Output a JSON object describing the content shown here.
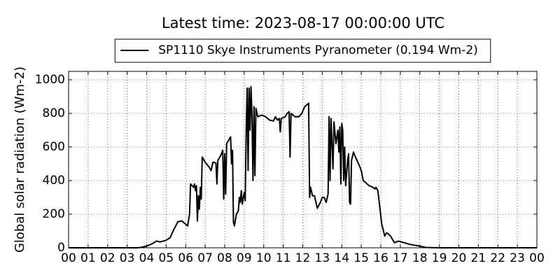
{
  "chart_data": {
    "type": "line",
    "title": "Latest time: 2023-08-17 00:00:00 UTC",
    "ylabel": "Global solar radiation (Wm-2)",
    "legend_position": "upper center",
    "grid": true,
    "xlim": [
      0,
      24
    ],
    "ylim": [
      0,
      1050
    ],
    "yticks": [
      0,
      200,
      400,
      600,
      800,
      1000
    ],
    "xticks": [
      {
        "value": 0,
        "label": "00"
      },
      {
        "value": 1,
        "label": "01"
      },
      {
        "value": 2,
        "label": "02"
      },
      {
        "value": 3,
        "label": "03"
      },
      {
        "value": 4,
        "label": "04"
      },
      {
        "value": 5,
        "label": "05"
      },
      {
        "value": 6,
        "label": "06"
      },
      {
        "value": 7,
        "label": "07"
      },
      {
        "value": 8,
        "label": "08"
      },
      {
        "value": 9,
        "label": "09"
      },
      {
        "value": 10,
        "label": "10"
      },
      {
        "value": 11,
        "label": "11"
      },
      {
        "value": 12,
        "label": "12"
      },
      {
        "value": 13,
        "label": "13"
      },
      {
        "value": 14,
        "label": "14"
      },
      {
        "value": 15,
        "label": "15"
      },
      {
        "value": 16,
        "label": "16"
      },
      {
        "value": 17,
        "label": "17"
      },
      {
        "value": 18,
        "label": "18"
      },
      {
        "value": 19,
        "label": "19"
      },
      {
        "value": 20,
        "label": "20"
      },
      {
        "value": 21,
        "label": "21"
      },
      {
        "value": 22,
        "label": "22"
      },
      {
        "value": 23,
        "label": "23"
      },
      {
        "value": 24,
        "label": "00"
      }
    ],
    "series": [
      {
        "name": "SP1110 Skye Instruments Pyranometer (0.194 Wm-2)",
        "color": "#000000",
        "x": [
          0,
          3.5,
          3.7,
          4.0,
          4.3,
          4.5,
          4.7,
          5.0,
          5.2,
          5.4,
          5.6,
          5.8,
          6.0,
          6.1,
          6.2,
          6.25,
          6.4,
          6.45,
          6.5,
          6.55,
          6.6,
          6.65,
          6.7,
          6.75,
          6.8,
          6.85,
          7.0,
          7.2,
          7.3,
          7.4,
          7.55,
          7.6,
          7.65,
          7.8,
          7.9,
          7.95,
          8.0,
          8.05,
          8.1,
          8.2,
          8.3,
          8.35,
          8.4,
          8.45,
          8.5,
          8.6,
          8.7,
          8.75,
          8.8,
          8.85,
          8.9,
          9.0,
          9.05,
          9.1,
          9.15,
          9.2,
          9.25,
          9.3,
          9.35,
          9.4,
          9.45,
          9.5,
          9.55,
          9.6,
          9.7,
          9.9,
          10.1,
          10.3,
          10.5,
          10.6,
          10.7,
          10.8,
          10.85,
          10.9,
          11.1,
          11.2,
          11.3,
          11.35,
          11.4,
          11.6,
          11.8,
          11.95,
          12.1,
          12.3,
          12.35,
          12.4,
          12.5,
          12.6,
          12.75,
          12.9,
          13.0,
          13.1,
          13.2,
          13.3,
          13.35,
          13.4,
          13.45,
          13.55,
          13.6,
          13.7,
          13.8,
          13.85,
          13.9,
          13.95,
          14.0,
          14.05,
          14.1,
          14.15,
          14.2,
          14.3,
          14.35,
          14.4,
          14.45,
          14.5,
          14.6,
          14.7,
          14.9,
          15.0,
          15.1,
          15.2,
          15.4,
          15.6,
          15.7,
          15.75,
          15.85,
          15.95,
          16.05,
          16.2,
          16.3,
          16.5,
          16.7,
          16.9,
          17.2,
          17.5,
          18.0,
          18.3,
          19.0,
          24
        ],
        "values": [
          0,
          0,
          2,
          10,
          25,
          40,
          35,
          45,
          60,
          110,
          155,
          160,
          140,
          130,
          200,
          380,
          360,
          380,
          340,
          370,
          160,
          310,
          230,
          360,
          290,
          540,
          510,
          480,
          460,
          510,
          505,
          380,
          520,
          550,
          580,
          290,
          560,
          320,
          620,
          640,
          660,
          500,
          580,
          150,
          130,
          200,
          220,
          300,
          270,
          340,
          260,
          330,
          280,
          700,
          950,
          460,
          950,
          700,
          960,
          780,
          400,
          840,
          430,
          830,
          780,
          790,
          780,
          760,
          755,
          780,
          760,
          770,
          690,
          770,
          780,
          800,
          810,
          540,
          800,
          780,
          780,
          800,
          840,
          860,
          300,
          360,
          310,
          310,
          235,
          270,
          300,
          300,
          270,
          320,
          780,
          400,
          770,
          470,
          750,
          620,
          700,
          570,
          720,
          380,
          740,
          700,
          400,
          600,
          370,
          520,
          560,
          270,
          260,
          520,
          570,
          540,
          490,
          460,
          400,
          390,
          370,
          360,
          350,
          360,
          340,
          240,
          140,
          70,
          90,
          70,
          30,
          40,
          30,
          20,
          10,
          2,
          0,
          0
        ]
      }
    ]
  }
}
